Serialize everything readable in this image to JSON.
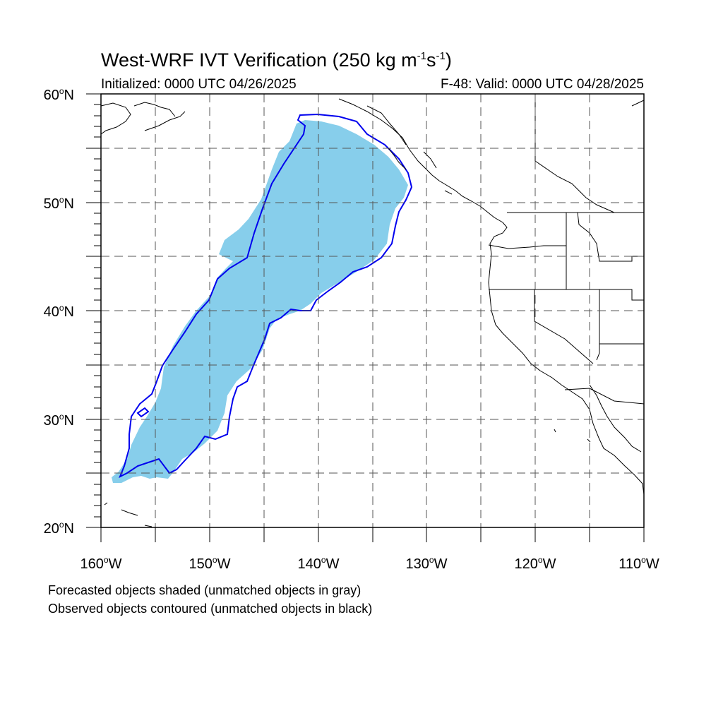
{
  "title": {
    "main": "West-WRF IVT Verification (250 kg m",
    "sup1": "-1",
    "mid": "s",
    "sup2": "-1",
    "end": ")"
  },
  "initialized": "Initialized: 0000 UTC 04/26/2025",
  "valid": "F-48: Valid: 0000 UTC 04/28/2025",
  "axes": {
    "lat_labels": [
      {
        "deg": "60",
        "hemi": "N"
      },
      {
        "deg": "50",
        "hemi": "N"
      },
      {
        "deg": "40",
        "hemi": "N"
      },
      {
        "deg": "30",
        "hemi": "N"
      },
      {
        "deg": "20",
        "hemi": "N"
      }
    ],
    "lon_labels": [
      {
        "deg": "160",
        "hemi": "W"
      },
      {
        "deg": "150",
        "hemi": "W"
      },
      {
        "deg": "140",
        "hemi": "W"
      },
      {
        "deg": "130",
        "hemi": "W"
      },
      {
        "deg": "120",
        "hemi": "W"
      },
      {
        "deg": "110",
        "hemi": "W"
      }
    ],
    "lon_range": [
      -160,
      -110
    ],
    "lat_range": [
      20,
      60
    ],
    "grid_spacing_deg": 5
  },
  "legend": {
    "line1": "Forecasted objects shaded (unmatched objects in gray)",
    "line2": "Observed objects contoured (unmatched objects in black)"
  },
  "colors": {
    "forecast_fill": "#87ceeb",
    "observed_contour": "#0000ee",
    "coastline": "#000000",
    "grid": "#555555"
  }
}
